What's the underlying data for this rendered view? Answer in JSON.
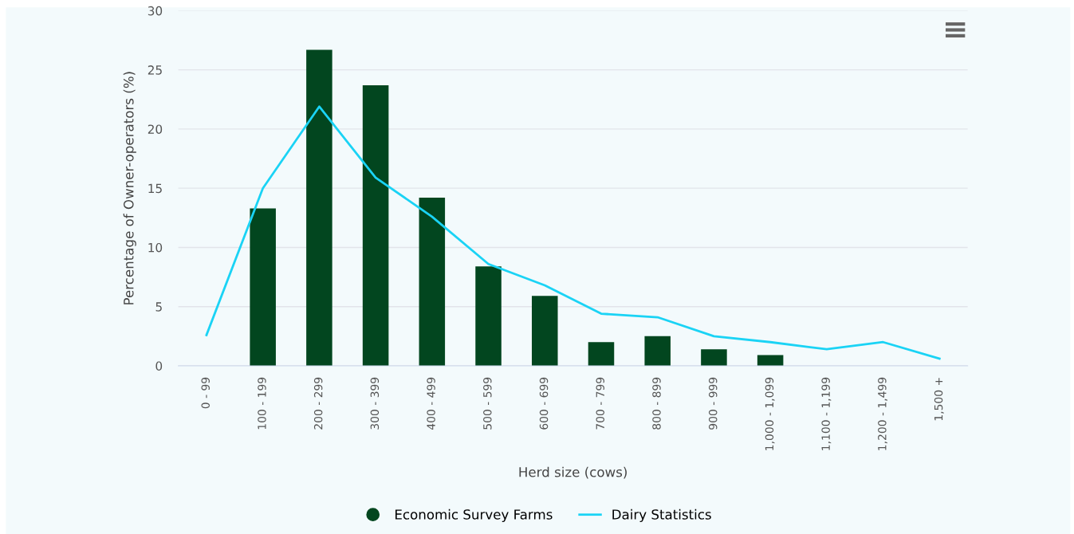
{
  "chart_data": {
    "type": "bar",
    "xlabel": "Herd size (cows)",
    "ylabel": "Percentage of Owner-operators (%)",
    "categories": [
      "0 - 99",
      "100 - 199",
      "200 - 299",
      "300 - 399",
      "400 - 499",
      "500 - 599",
      "600 - 699",
      "700 - 799",
      "800 - 899",
      "900 - 999",
      "1,000 - 1,099",
      "1,100 - 1,199",
      "1,200 - 1,499",
      "1,500 +"
    ],
    "series": [
      {
        "name": "Economic Survey Farms",
        "color": "#02461f",
        "values": [
          null,
          13.3,
          26.7,
          23.7,
          14.2,
          8.4,
          5.9,
          2.0,
          2.5,
          1.4,
          0.9,
          null,
          null,
          null
        ]
      },
      {
        "name": "Dairy Statistics",
        "type": "line",
        "color": "#1ad3f5",
        "values": [
          2.6,
          15.0,
          21.9,
          15.9,
          12.6,
          8.6,
          6.8,
          4.4,
          4.1,
          2.5,
          2.0,
          1.4,
          2.0,
          0.6
        ]
      }
    ],
    "ylim": [
      0,
      30
    ],
    "yticks": [
      0,
      5,
      10,
      15,
      20,
      25,
      30
    ],
    "grid": "y",
    "legend": "bottom",
    "marker": "none",
    "line_style": "solid"
  }
}
